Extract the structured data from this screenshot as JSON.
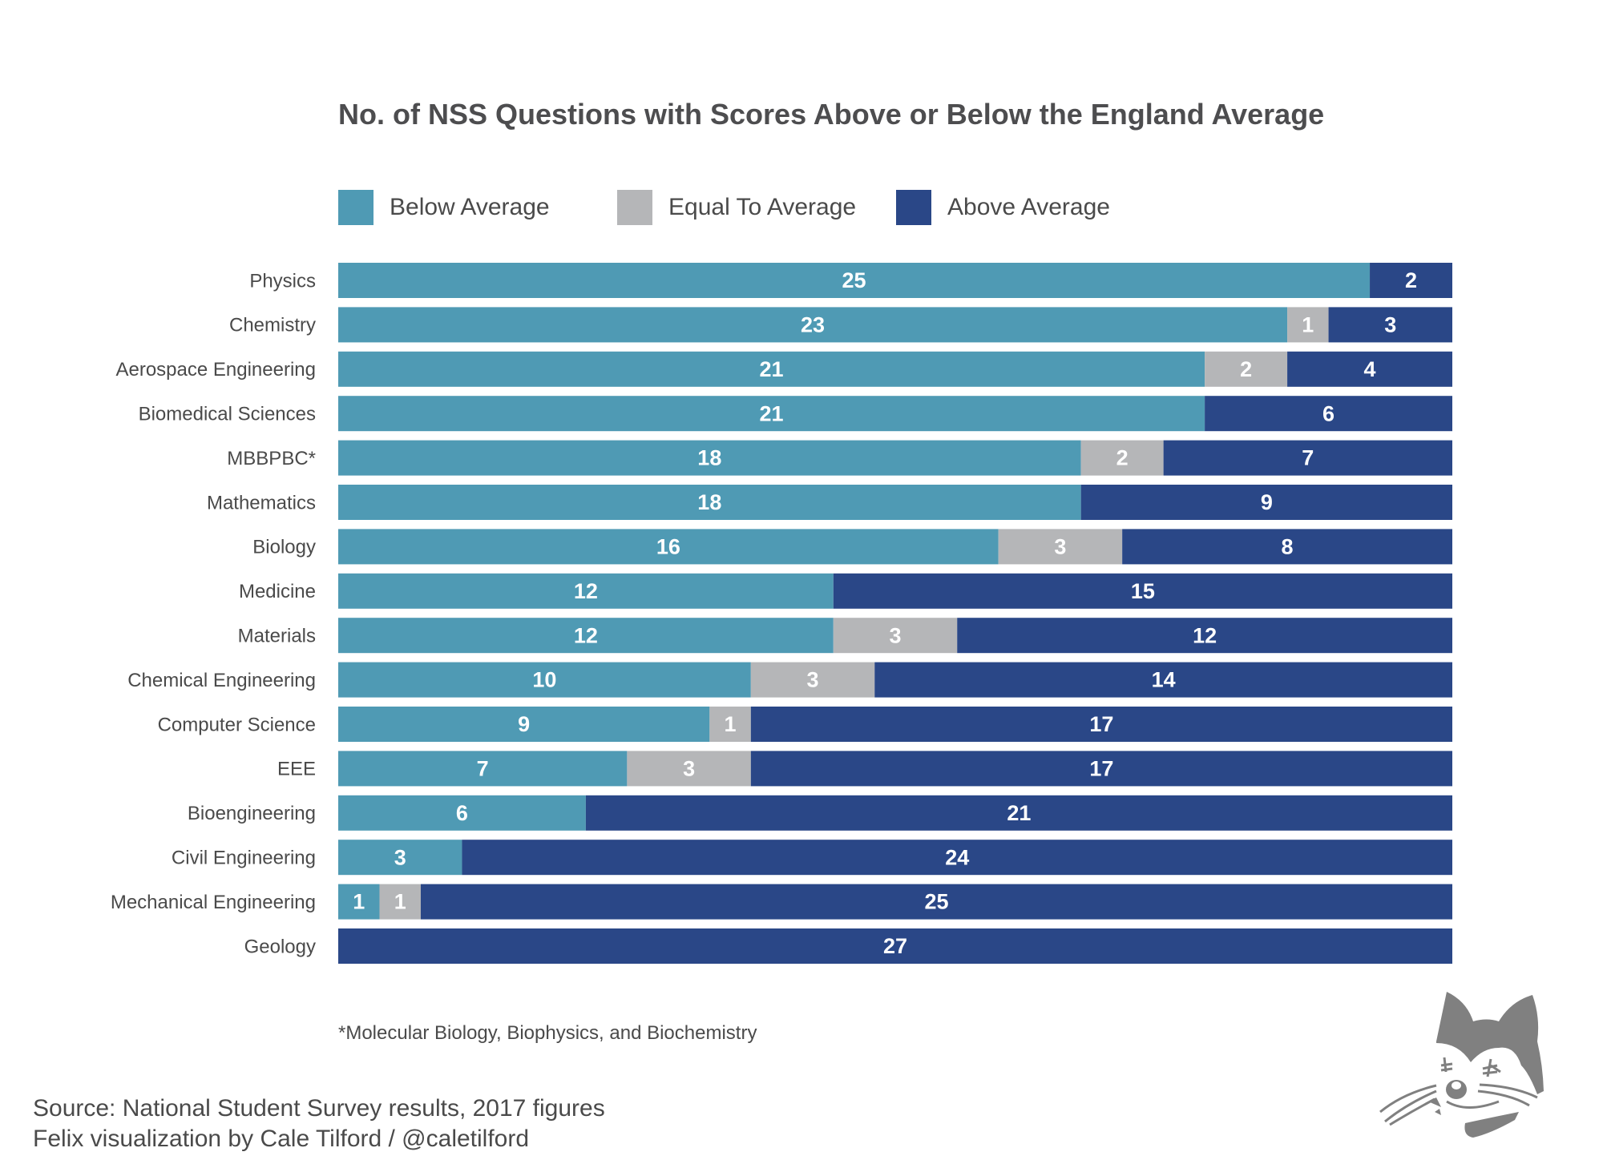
{
  "chart_data": {
    "type": "bar",
    "orientation": "horizontal",
    "stacked": true,
    "title": "No. of NSS Questions with Scores Above or Below the England Average",
    "categories": [
      "Physics",
      "Chemistry",
      "Aerospace Engineering",
      "Biomedical Sciences",
      "MBBPBC*",
      "Mathematics",
      "Biology",
      "Medicine",
      "Materials",
      "Chemical Engineering",
      "Computer Science",
      "EEE",
      "Bioengineering",
      "Civil Engineering",
      "Mechanical Engineering",
      "Geology"
    ],
    "series": [
      {
        "name": "Below Average",
        "color": "#4f9ab4",
        "values": [
          25,
          23,
          21,
          21,
          18,
          18,
          16,
          12,
          12,
          10,
          9,
          7,
          6,
          3,
          1,
          0
        ]
      },
      {
        "name": "Equal To Average",
        "color": "#b5b6b8",
        "values": [
          0,
          1,
          2,
          0,
          2,
          0,
          3,
          0,
          3,
          3,
          1,
          3,
          0,
          0,
          1,
          0
        ]
      },
      {
        "name": "Above Average",
        "color": "#2a4787",
        "values": [
          2,
          3,
          4,
          6,
          7,
          9,
          8,
          15,
          12,
          14,
          17,
          17,
          21,
          24,
          25,
          27
        ]
      }
    ],
    "xlim": [
      0,
      27
    ],
    "grid": false,
    "legend_position": "top",
    "data_labels": true
  },
  "footnote": "*Molecular Biology, Biophysics, and Biochemistry",
  "source": {
    "line1": "Source: National Student Survey results, 2017 figures",
    "line2": "Felix visualization by Cale Tilford / @caletilford"
  },
  "logo": "cat-icon"
}
